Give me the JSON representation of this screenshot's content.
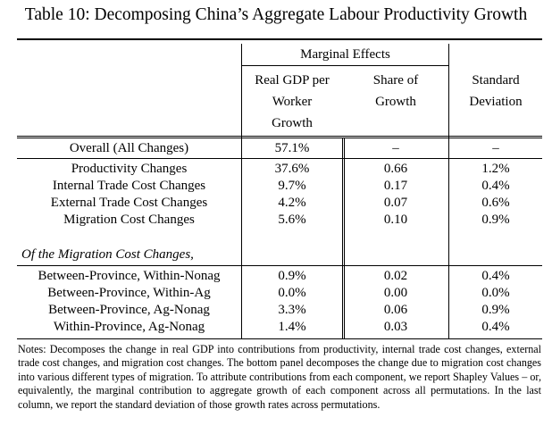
{
  "title": "Table 10: Decomposing China’s Aggregate Labour Productivity Growth",
  "header": {
    "group_label": "Marginal Effects",
    "col2": [
      "Real GDP per",
      "Worker",
      "Growth"
    ],
    "col3": [
      "Share of",
      "Growth"
    ],
    "col4": [
      "Standard",
      "Deviation"
    ]
  },
  "overall": {
    "label": "Overall (All Changes)",
    "gdp": "57.1%",
    "share": "–",
    "sd": "–"
  },
  "rows": [
    {
      "label": "Productivity Changes",
      "gdp": "37.6%",
      "share": "0.66",
      "sd": "1.2%"
    },
    {
      "label": "Internal Trade Cost Changes",
      "gdp": "9.7%",
      "share": "0.17",
      "sd": "0.4%"
    },
    {
      "label": "External Trade Cost Changes",
      "gdp": "4.2%",
      "share": "0.07",
      "sd": "0.6%"
    },
    {
      "label": "Migration Cost Changes",
      "gdp": "5.6%",
      "share": "0.10",
      "sd": "0.9%"
    }
  ],
  "section_label": "Of the Migration Cost Changes,",
  "migration_rows": [
    {
      "label": "Between-Province, Within-Nonag",
      "gdp": "0.9%",
      "share": "0.02",
      "sd": "0.4%"
    },
    {
      "label": "Between-Province, Within-Ag",
      "gdp": "0.0%",
      "share": "0.00",
      "sd": "0.0%"
    },
    {
      "label": "Between-Province, Ag-Nonag",
      "gdp": "3.3%",
      "share": "0.06",
      "sd": "0.9%"
    },
    {
      "label": "Within-Province, Ag-Nonag",
      "gdp": "1.4%",
      "share": "0.03",
      "sd": "0.4%"
    }
  ],
  "notes": "Notes: Decomposes the change in real GDP into contributions from productivity, internal trade cost changes, external trade cost changes, and migration cost changes. The bottom panel decomposes the change due to migration cost changes into various different types of migration. To attribute contributions from each component, we report Shapley Values – or, equivalently, the marginal contribution to aggregate growth of each component across all permutations. In the last column, we report the standard deviation of those growth rates across permutations."
}
